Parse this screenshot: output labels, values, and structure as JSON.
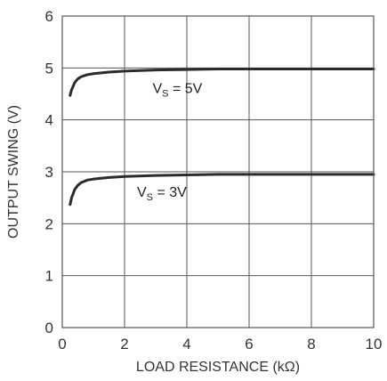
{
  "chart_data": {
    "type": "line",
    "xlabel": "LOAD RESISTANCE (kΩ)",
    "ylabel": "OUTPUT SWING (V)",
    "xlim": [
      0,
      10
    ],
    "ylim": [
      0,
      6
    ],
    "x_ticks": [
      "0",
      "2",
      "4",
      "6",
      "8",
      "10"
    ],
    "y_ticks": [
      "0",
      "1",
      "2",
      "3",
      "4",
      "5",
      "6"
    ],
    "grid": true,
    "line_color": "#2b2b2b",
    "grid_color": "#555555",
    "series": [
      {
        "label_main": "V",
        "label_sub": "S",
        "label_rest": " = 5V",
        "x": [
          0.25,
          0.3,
          0.4,
          0.5,
          0.6,
          0.8,
          1.0,
          1.5,
          2.0,
          3.0,
          4.0,
          5.0,
          6.0,
          8.0,
          10.0
        ],
        "y": [
          4.47,
          4.58,
          4.72,
          4.79,
          4.83,
          4.87,
          4.89,
          4.92,
          4.94,
          4.96,
          4.97,
          4.98,
          4.98,
          4.98,
          4.98
        ]
      },
      {
        "label_main": "V",
        "label_sub": "S",
        "label_rest": " = 3V",
        "x": [
          0.25,
          0.3,
          0.4,
          0.5,
          0.6,
          0.8,
          1.0,
          1.5,
          2.0,
          3.0,
          4.0,
          5.0,
          6.0,
          8.0,
          10.0
        ],
        "y": [
          2.37,
          2.5,
          2.66,
          2.74,
          2.79,
          2.84,
          2.86,
          2.89,
          2.91,
          2.93,
          2.94,
          2.95,
          2.95,
          2.95,
          2.95
        ]
      }
    ]
  }
}
